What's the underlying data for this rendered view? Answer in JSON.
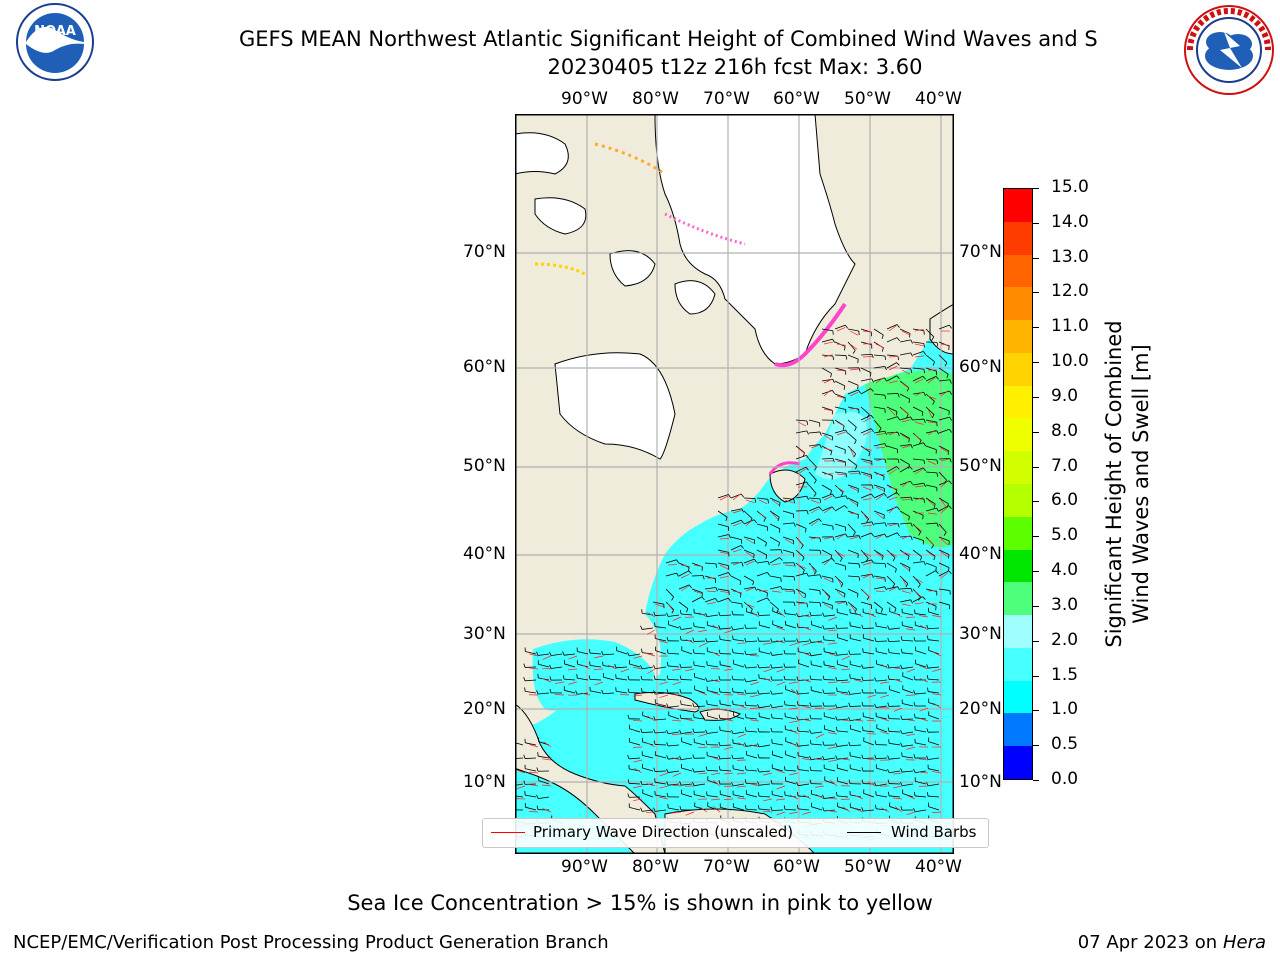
{
  "header": {
    "title_line1": "GEFS MEAN Northwest Atlantic Significant Height of Combined Wind Waves and S",
    "title_line2": "20230405 t12z 216h fcst   Max: 3.60"
  },
  "logos": {
    "left": {
      "text": "NOAA",
      "ring_text": "NATIONAL OCEANIC AND ATMOSPHERIC ADMINISTRATION · U.S. DEPARTMENT OF COMMERCE"
    },
    "right": {
      "ring_text": "NATIONAL WEATHER SERVICE"
    }
  },
  "map": {
    "lon_labels": [
      "90°W",
      "80°W",
      "70°W",
      "60°W",
      "50°W",
      "40°W"
    ],
    "lat_labels": [
      "70°N",
      "60°N",
      "50°N",
      "40°N",
      "30°N",
      "20°N",
      "10°N"
    ],
    "colors": {
      "land": "#efecdc",
      "ice_land": "#ffffff",
      "coast": "#000000",
      "grid": "#b0b0b0",
      "ice": "#ff44cc"
    },
    "legend": {
      "wave_label": "Primary Wave Direction (unscaled)",
      "wind_label": "Wind Barbs",
      "wave_color": "#ff0000",
      "wind_color": "#000000"
    }
  },
  "colorbar": {
    "title_line1": "Significant Height of Combined",
    "title_line2": "Wind Waves and Swell [m]",
    "ticks": [
      "15.0",
      "14.0",
      "13.0",
      "12.0",
      "11.0",
      "10.0",
      "9.0",
      "8.0",
      "7.0",
      "6.0",
      "5.0",
      "4.0",
      "3.0",
      "2.0",
      "1.5",
      "1.0",
      "0.5",
      "0.0"
    ],
    "colors": [
      "#0000ff",
      "#0078ff",
      "#00ffff",
      "#46ffff",
      "#9fffff",
      "#4dff7a",
      "#00e600",
      "#5dff00",
      "#b4ff00",
      "#d2ff00",
      "#f0ff00",
      "#fff000",
      "#ffd200",
      "#ffb400",
      "#ff8c00",
      "#ff6400",
      "#ff3c00",
      "#ff0000"
    ]
  },
  "footer": {
    "note": "Sea Ice Concentration > 15% is shown in pink to yellow",
    "left": "NCEP/EMC/Verification Post Processing Product Generation Branch",
    "right_date": "07 Apr 2023 on ",
    "right_host": "Hera"
  }
}
